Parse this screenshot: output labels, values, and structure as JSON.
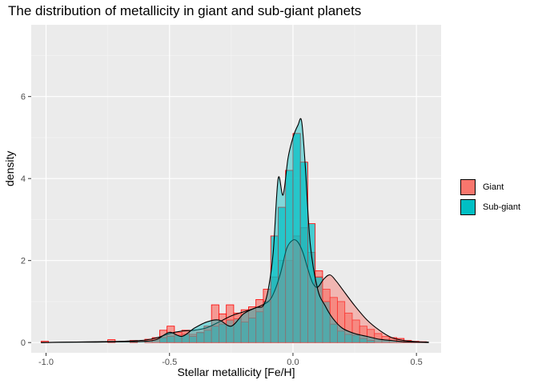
{
  "chart_data": {
    "type": "histogram+density",
    "title": "The distribution of metallicity in giant and sub-giant planets",
    "xlabel": "Stellar metallicity [Fe/H]",
    "ylabel": "density",
    "xlim": [
      -1.06,
      0.6
    ],
    "ylim": [
      -0.25,
      7.75
    ],
    "x_ticks": [
      -1.0,
      -0.5,
      0.0,
      0.5
    ],
    "x_tick_labels": [
      "-1.0",
      "-0.5",
      "0.0",
      "0.5"
    ],
    "y_ticks": [
      0,
      2,
      4,
      6
    ],
    "y_tick_labels": [
      "0",
      "2",
      "4",
      "6"
    ],
    "grid": true,
    "legend_position": "right",
    "bin_width": 0.03,
    "series": [
      {
        "name": "Giant",
        "color": "#f8766d",
        "outline": "#ff0000",
        "bins": [
          {
            "x": -1.005,
            "y": 0.03
          },
          {
            "x": -0.735,
            "y": 0.07
          },
          {
            "x": -0.645,
            "y": 0.05
          },
          {
            "x": -0.585,
            "y": 0.08
          },
          {
            "x": -0.555,
            "y": 0.12
          },
          {
            "x": -0.525,
            "y": 0.3
          },
          {
            "x": -0.495,
            "y": 0.4
          },
          {
            "x": -0.465,
            "y": 0.25
          },
          {
            "x": -0.435,
            "y": 0.3
          },
          {
            "x": -0.405,
            "y": 0.2
          },
          {
            "x": -0.375,
            "y": 0.23
          },
          {
            "x": -0.345,
            "y": 0.4
          },
          {
            "x": -0.315,
            "y": 0.92
          },
          {
            "x": -0.285,
            "y": 0.7
          },
          {
            "x": -0.255,
            "y": 0.92
          },
          {
            "x": -0.225,
            "y": 0.72
          },
          {
            "x": -0.195,
            "y": 0.8
          },
          {
            "x": -0.165,
            "y": 0.87
          },
          {
            "x": -0.135,
            "y": 1.05
          },
          {
            "x": -0.105,
            "y": 1.3
          },
          {
            "x": -0.075,
            "y": 1.6
          },
          {
            "x": -0.045,
            "y": 2.0
          },
          {
            "x": -0.015,
            "y": 2.0
          },
          {
            "x": 0.015,
            "y": 2.6
          },
          {
            "x": 0.045,
            "y": 2.8
          },
          {
            "x": 0.075,
            "y": 2.2
          },
          {
            "x": 0.105,
            "y": 1.75
          },
          {
            "x": 0.135,
            "y": 1.3
          },
          {
            "x": 0.165,
            "y": 1.1
          },
          {
            "x": 0.195,
            "y": 1.0
          },
          {
            "x": 0.225,
            "y": 0.72
          },
          {
            "x": 0.255,
            "y": 0.55
          },
          {
            "x": 0.285,
            "y": 0.4
          },
          {
            "x": 0.315,
            "y": 0.32
          },
          {
            "x": 0.345,
            "y": 0.22
          },
          {
            "x": 0.375,
            "y": 0.15
          },
          {
            "x": 0.405,
            "y": 0.12
          },
          {
            "x": 0.435,
            "y": 0.1
          },
          {
            "x": 0.465,
            "y": 0.05
          },
          {
            "x": 0.495,
            "y": 0.03
          },
          {
            "x": 0.525,
            "y": 0.02
          }
        ],
        "density": {
          "x": [
            -1.02,
            -0.9,
            -0.8,
            -0.7,
            -0.6,
            -0.55,
            -0.5,
            -0.45,
            -0.4,
            -0.35,
            -0.3,
            -0.25,
            -0.2,
            -0.15,
            -0.1,
            -0.075,
            -0.05,
            -0.025,
            0.0,
            0.02,
            0.04,
            0.06,
            0.08,
            0.1,
            0.125,
            0.15,
            0.175,
            0.2,
            0.25,
            0.3,
            0.35,
            0.4,
            0.45,
            0.5,
            0.55
          ],
          "y": [
            0.0,
            0.01,
            0.02,
            0.03,
            0.06,
            0.12,
            0.22,
            0.28,
            0.3,
            0.36,
            0.5,
            0.65,
            0.75,
            0.85,
            1.0,
            1.25,
            1.7,
            2.3,
            2.5,
            2.45,
            2.2,
            1.8,
            1.45,
            1.35,
            1.55,
            1.65,
            1.5,
            1.3,
            0.9,
            0.55,
            0.3,
            0.12,
            0.05,
            0.02,
            0.01
          ]
        }
      },
      {
        "name": "Sub-giant",
        "color": "#00bfc4",
        "outline": "#ff0000",
        "bins": [
          {
            "x": -0.525,
            "y": 0.12
          },
          {
            "x": -0.495,
            "y": 0.15
          },
          {
            "x": -0.465,
            "y": 0.18
          },
          {
            "x": -0.435,
            "y": 0.2
          },
          {
            "x": -0.405,
            "y": 0.15
          },
          {
            "x": -0.375,
            "y": 0.25
          },
          {
            "x": -0.345,
            "y": 0.3
          },
          {
            "x": -0.315,
            "y": 0.4
          },
          {
            "x": -0.285,
            "y": 0.45
          },
          {
            "x": -0.255,
            "y": 0.55
          },
          {
            "x": -0.225,
            "y": 0.58
          },
          {
            "x": -0.195,
            "y": 0.5
          },
          {
            "x": -0.165,
            "y": 0.6
          },
          {
            "x": -0.135,
            "y": 0.75
          },
          {
            "x": -0.105,
            "y": 1.0
          },
          {
            "x": -0.075,
            "y": 2.6
          },
          {
            "x": -0.045,
            "y": 3.3
          },
          {
            "x": -0.015,
            "y": 4.2
          },
          {
            "x": 0.015,
            "y": 5.1
          },
          {
            "x": 0.045,
            "y": 4.4
          },
          {
            "x": 0.075,
            "y": 2.9
          },
          {
            "x": 0.105,
            "y": 1.6
          },
          {
            "x": 0.135,
            "y": 1.0
          },
          {
            "x": 0.165,
            "y": 0.45
          },
          {
            "x": 0.195,
            "y": 0.28
          },
          {
            "x": 0.225,
            "y": 0.2
          },
          {
            "x": 0.255,
            "y": 0.18
          },
          {
            "x": 0.285,
            "y": 0.1
          },
          {
            "x": 0.315,
            "y": 0.05
          }
        ],
        "density": {
          "x": [
            -1.02,
            -0.9,
            -0.8,
            -0.7,
            -0.6,
            -0.55,
            -0.5,
            -0.45,
            -0.4,
            -0.35,
            -0.3,
            -0.25,
            -0.2,
            -0.15,
            -0.12,
            -0.1,
            -0.08,
            -0.06,
            -0.04,
            -0.02,
            0.0,
            0.02,
            0.035,
            0.05,
            0.07,
            0.1,
            0.13,
            0.16,
            0.2,
            0.25,
            0.3,
            0.35,
            0.4,
            0.45,
            0.5,
            0.55
          ],
          "y": [
            0.0,
            0.01,
            0.01,
            0.02,
            0.03,
            0.08,
            0.25,
            0.15,
            0.35,
            0.5,
            0.55,
            0.4,
            0.7,
            0.85,
            0.9,
            1.3,
            2.2,
            4.0,
            3.6,
            4.5,
            5.0,
            5.3,
            5.4,
            4.3,
            2.4,
            1.3,
            0.9,
            0.6,
            0.35,
            0.22,
            0.15,
            0.08,
            0.05,
            0.02,
            0.01,
            0.0
          ]
        }
      }
    ]
  }
}
